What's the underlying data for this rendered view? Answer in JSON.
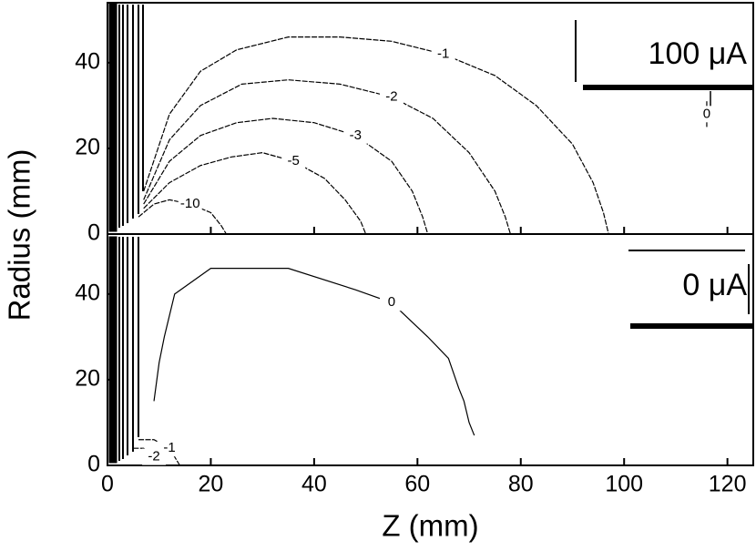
{
  "chart_data": [
    {
      "type": "contour",
      "y_label": "Radius (mm)",
      "annotation": "100 μA",
      "xlim": [
        0,
        125
      ],
      "ylim": [
        0,
        54
      ],
      "xticks": [
        0,
        20,
        40,
        60,
        80,
        100,
        120
      ],
      "yticks": [
        0,
        20,
        40
      ],
      "contours": [
        {
          "level": -1,
          "z": [
            7,
            12,
            18,
            25,
            35,
            45,
            55,
            65,
            75,
            83,
            90,
            94,
            96,
            97
          ],
          "r": [
            10,
            28,
            38,
            43,
            46,
            46,
            45,
            42,
            37,
            30,
            21,
            12,
            5,
            0
          ]
        },
        {
          "level": -2,
          "z": [
            7,
            12,
            18,
            26,
            35,
            45,
            55,
            63,
            70,
            75,
            77,
            78
          ],
          "r": [
            8,
            22,
            30,
            35,
            36,
            35,
            32,
            27,
            19,
            10,
            4,
            0
          ]
        },
        {
          "level": -3,
          "z": [
            7,
            12,
            18,
            25,
            32,
            40,
            48,
            55,
            59,
            61,
            62
          ],
          "r": [
            7,
            17,
            23,
            26,
            27,
            26,
            23,
            17,
            10,
            4,
            0
          ]
        },
        {
          "level": -5,
          "z": [
            7,
            12,
            18,
            24,
            30,
            36,
            42,
            46,
            49,
            50
          ],
          "r": [
            6,
            12,
            16,
            18,
            19,
            17,
            13,
            8,
            3,
            0
          ]
        },
        {
          "level": -10,
          "z": [
            6,
            9,
            12,
            16,
            20,
            22,
            23
          ],
          "r": [
            4,
            7,
            8,
            7,
            5,
            2,
            0
          ]
        },
        {
          "level": 0,
          "z": [
            116,
            116,
            116
          ],
          "r": [
            31,
            28,
            25
          ]
        }
      ]
    },
    {
      "type": "contour",
      "x_label": "Z (mm)",
      "annotation": "0 μA",
      "xlim": [
        0,
        125
      ],
      "ylim": [
        0,
        54
      ],
      "xticks": [
        0,
        20,
        40,
        60,
        80,
        100,
        120
      ],
      "yticks": [
        0,
        20,
        40
      ],
      "contours": [
        {
          "level": 0,
          "z": [
            9,
            10,
            11,
            13,
            20,
            35,
            48,
            55,
            62,
            66,
            68,
            69,
            70,
            71
          ],
          "r": [
            15,
            24,
            30,
            40,
            46,
            46,
            41,
            38,
            30,
            25,
            18,
            15,
            10,
            7
          ]
        },
        {
          "level": -1,
          "z": [
            6,
            9,
            12,
            14
          ],
          "r": [
            6,
            6,
            4,
            0
          ]
        },
        {
          "level": -2,
          "z": [
            5,
            7,
            9,
            10
          ],
          "r": [
            4,
            4,
            2,
            0
          ]
        }
      ]
    }
  ]
}
